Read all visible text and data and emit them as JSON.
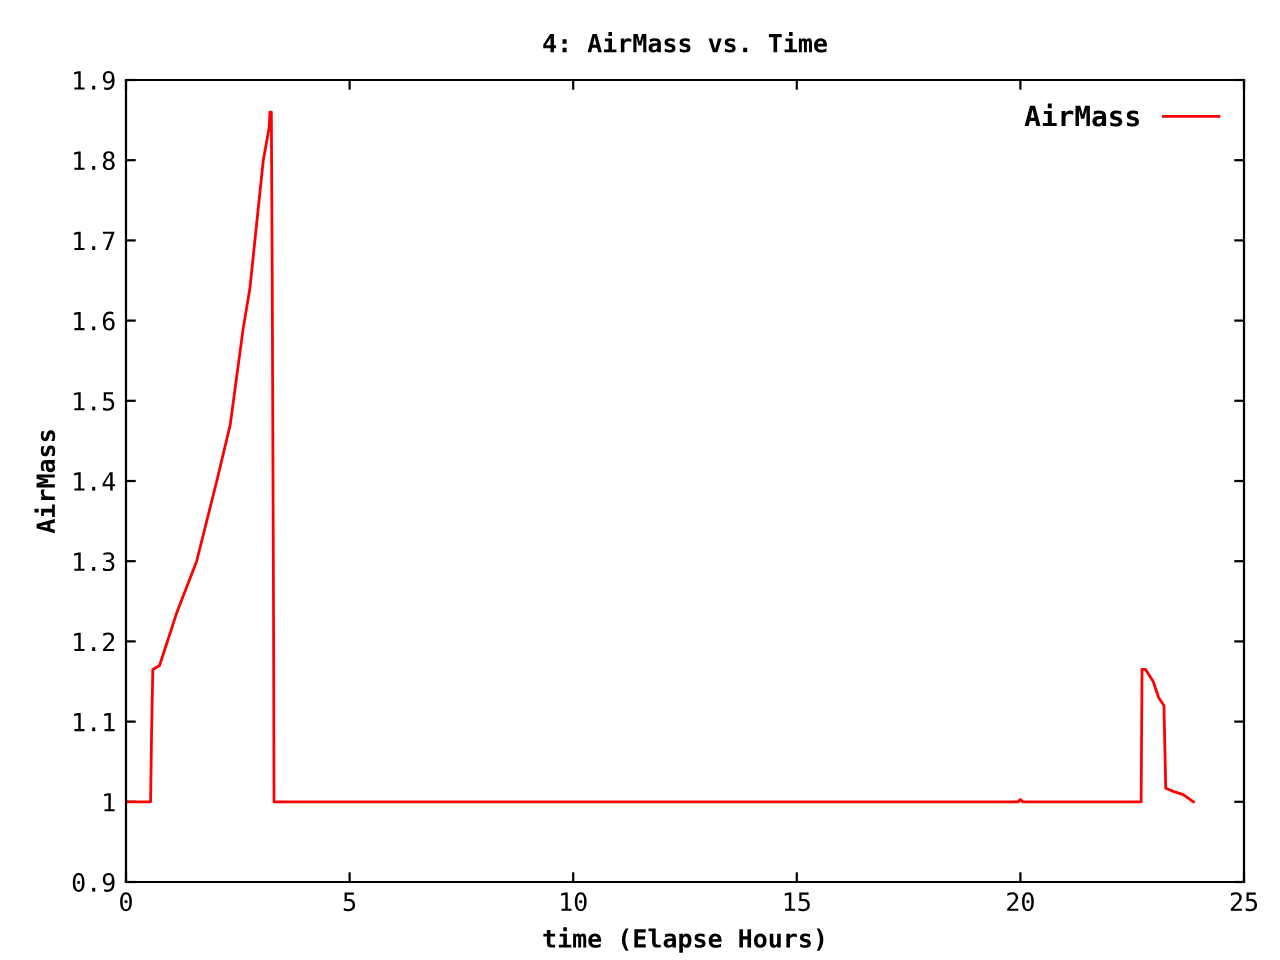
{
  "chart_data": {
    "type": "line",
    "title": "4: AirMass vs. Time",
    "xlabel": "time (Elapse Hours)",
    "ylabel": "AirMass",
    "series": [
      {
        "name": "AirMass",
        "color": "#ff0000",
        "x": [
          0,
          0.55,
          0.57,
          0.6,
          0.75,
          1.13,
          1.58,
          2.03,
          2.33,
          2.62,
          2.77,
          2.92,
          3.07,
          3.2,
          3.22,
          3.25,
          3.27,
          3.3,
          3.31,
          3.35,
          19.95,
          20.0,
          20.05,
          22.7,
          22.72,
          22.8,
          22.97,
          23.09,
          23.21,
          23.25,
          23.42,
          23.64,
          23.87
        ],
        "values": [
          1.0,
          1.0,
          1.08,
          1.165,
          1.17,
          1.235,
          1.3,
          1.4,
          1.47,
          1.59,
          1.64,
          1.72,
          1.8,
          1.84,
          1.86,
          1.86,
          1.65,
          1.22,
          1.0,
          1.0,
          1.0,
          1.003,
          1.0,
          1.0,
          1.165,
          1.165,
          1.15,
          1.13,
          1.12,
          1.017,
          1.013,
          1.009,
          1.0
        ]
      }
    ],
    "xlim": [
      0,
      25
    ],
    "xticks": [
      0,
      5,
      10,
      15,
      20,
      25
    ],
    "ylim": [
      0.9,
      1.9
    ],
    "yticks": [
      0.9,
      1,
      1.1,
      1.2,
      1.3,
      1.4,
      1.5,
      1.6,
      1.7,
      1.8,
      1.9
    ],
    "legend": "top right",
    "grid": false,
    "marker": "none",
    "line_style": "solid"
  }
}
